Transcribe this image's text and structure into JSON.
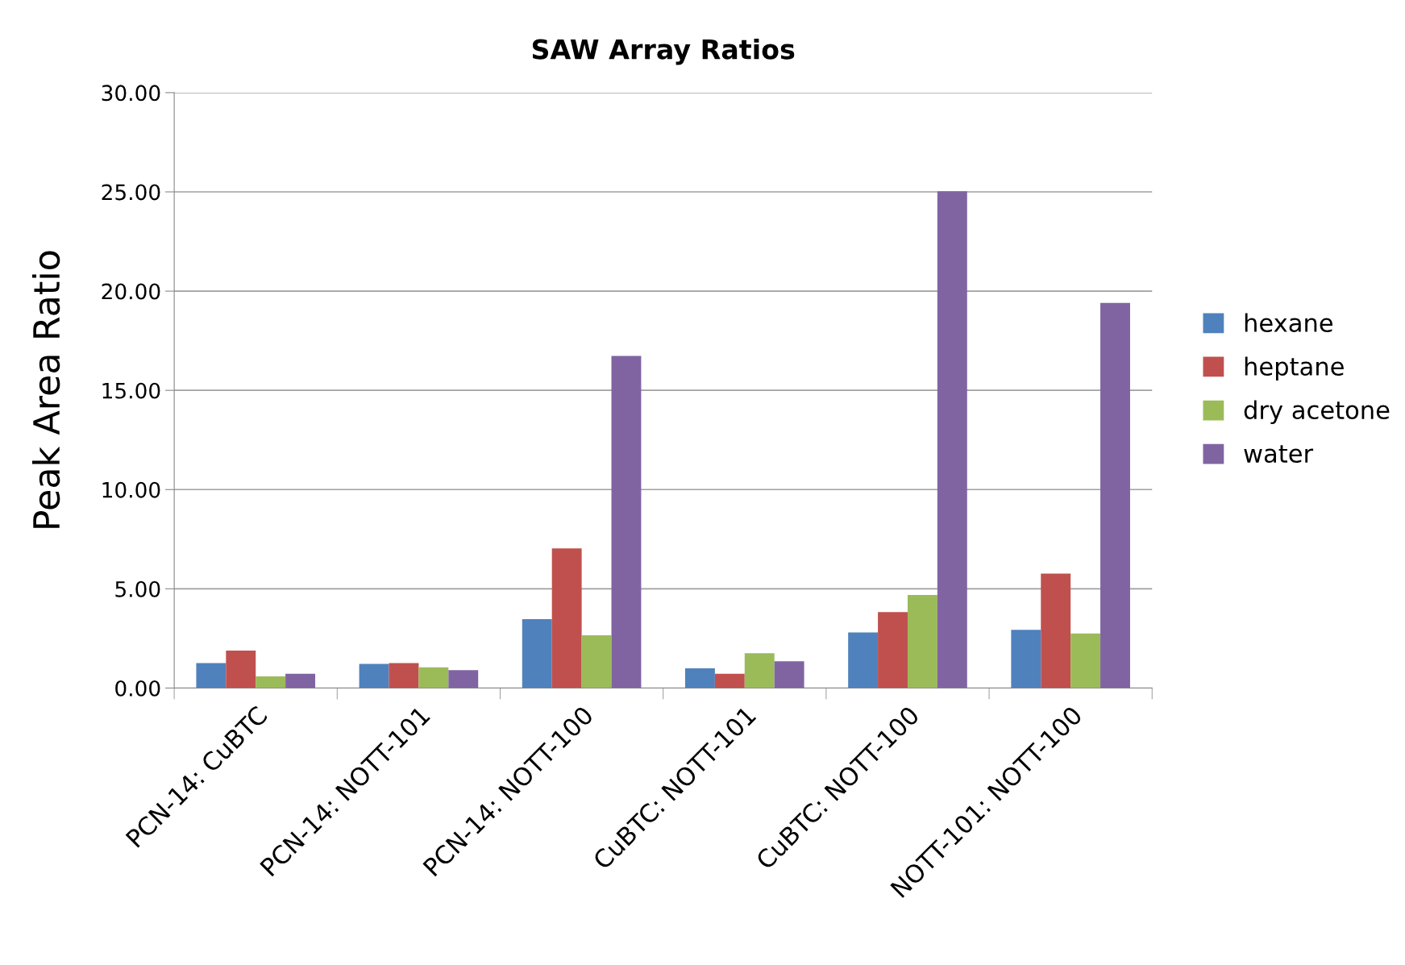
{
  "chart_data": {
    "type": "bar",
    "title": "SAW Array Ratios",
    "ylabel": "Peak Area Ratio",
    "categories": [
      "PCN-14: CuBTC",
      "PCN-14: NOTT-101",
      "PCN-14: NOTT-100",
      "CuBTC: NOTT-101",
      "CuBTC: NOTT-100",
      "NOTT-101: NOTT-100"
    ],
    "series": [
      {
        "name": "hexane",
        "color": "#4f81bd",
        "values": [
          1.26,
          1.22,
          3.47,
          0.99,
          2.8,
          2.93
        ]
      },
      {
        "name": "heptane",
        "color": "#c0504d",
        "values": [
          1.89,
          1.26,
          7.04,
          0.72,
          3.83,
          5.77
        ]
      },
      {
        "name": "dry acetone",
        "color": "#9bbb59",
        "values": [
          0.59,
          1.04,
          2.66,
          1.76,
          4.69,
          2.75
        ]
      },
      {
        "name": "water",
        "color": "#8064a2",
        "values": [
          0.72,
          0.9,
          16.73,
          1.35,
          25.03,
          19.4
        ]
      }
    ],
    "ylim": [
      0,
      30
    ],
    "yticks": [
      {
        "value": 0,
        "label": "0.00"
      },
      {
        "value": 5,
        "label": "5.00"
      },
      {
        "value": 10,
        "label": "10.00"
      },
      {
        "value": 15,
        "label": "15.00"
      },
      {
        "value": 20,
        "label": "20.00"
      },
      {
        "value": 25,
        "label": "25.00"
      },
      {
        "value": 30,
        "label": "30.00"
      }
    ],
    "grid": "y",
    "legend": "right"
  }
}
